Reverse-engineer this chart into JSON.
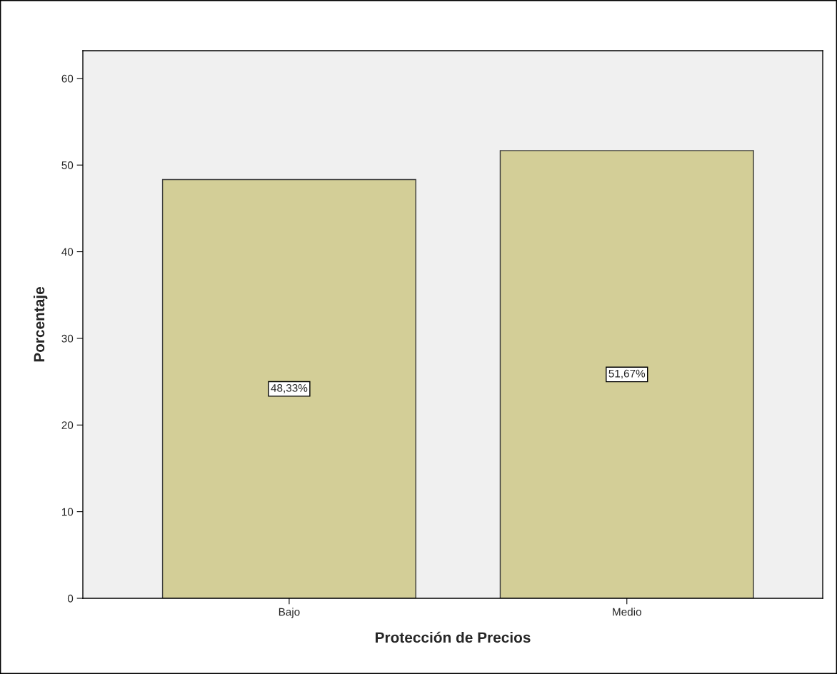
{
  "chart_data": {
    "type": "bar",
    "xlabel": "Protección de Precios",
    "ylabel": "Porcentaje",
    "categories": [
      "Bajo",
      "Medio"
    ],
    "values": [
      48.33,
      51.67
    ],
    "color": "#d3ce97",
    "value_labels": [
      "48,33%",
      "51,67%"
    ],
    "ylim": [
      0,
      63.2
    ],
    "yticks": [
      0,
      10,
      20,
      30,
      40,
      50,
      60
    ],
    "grid": false
  }
}
